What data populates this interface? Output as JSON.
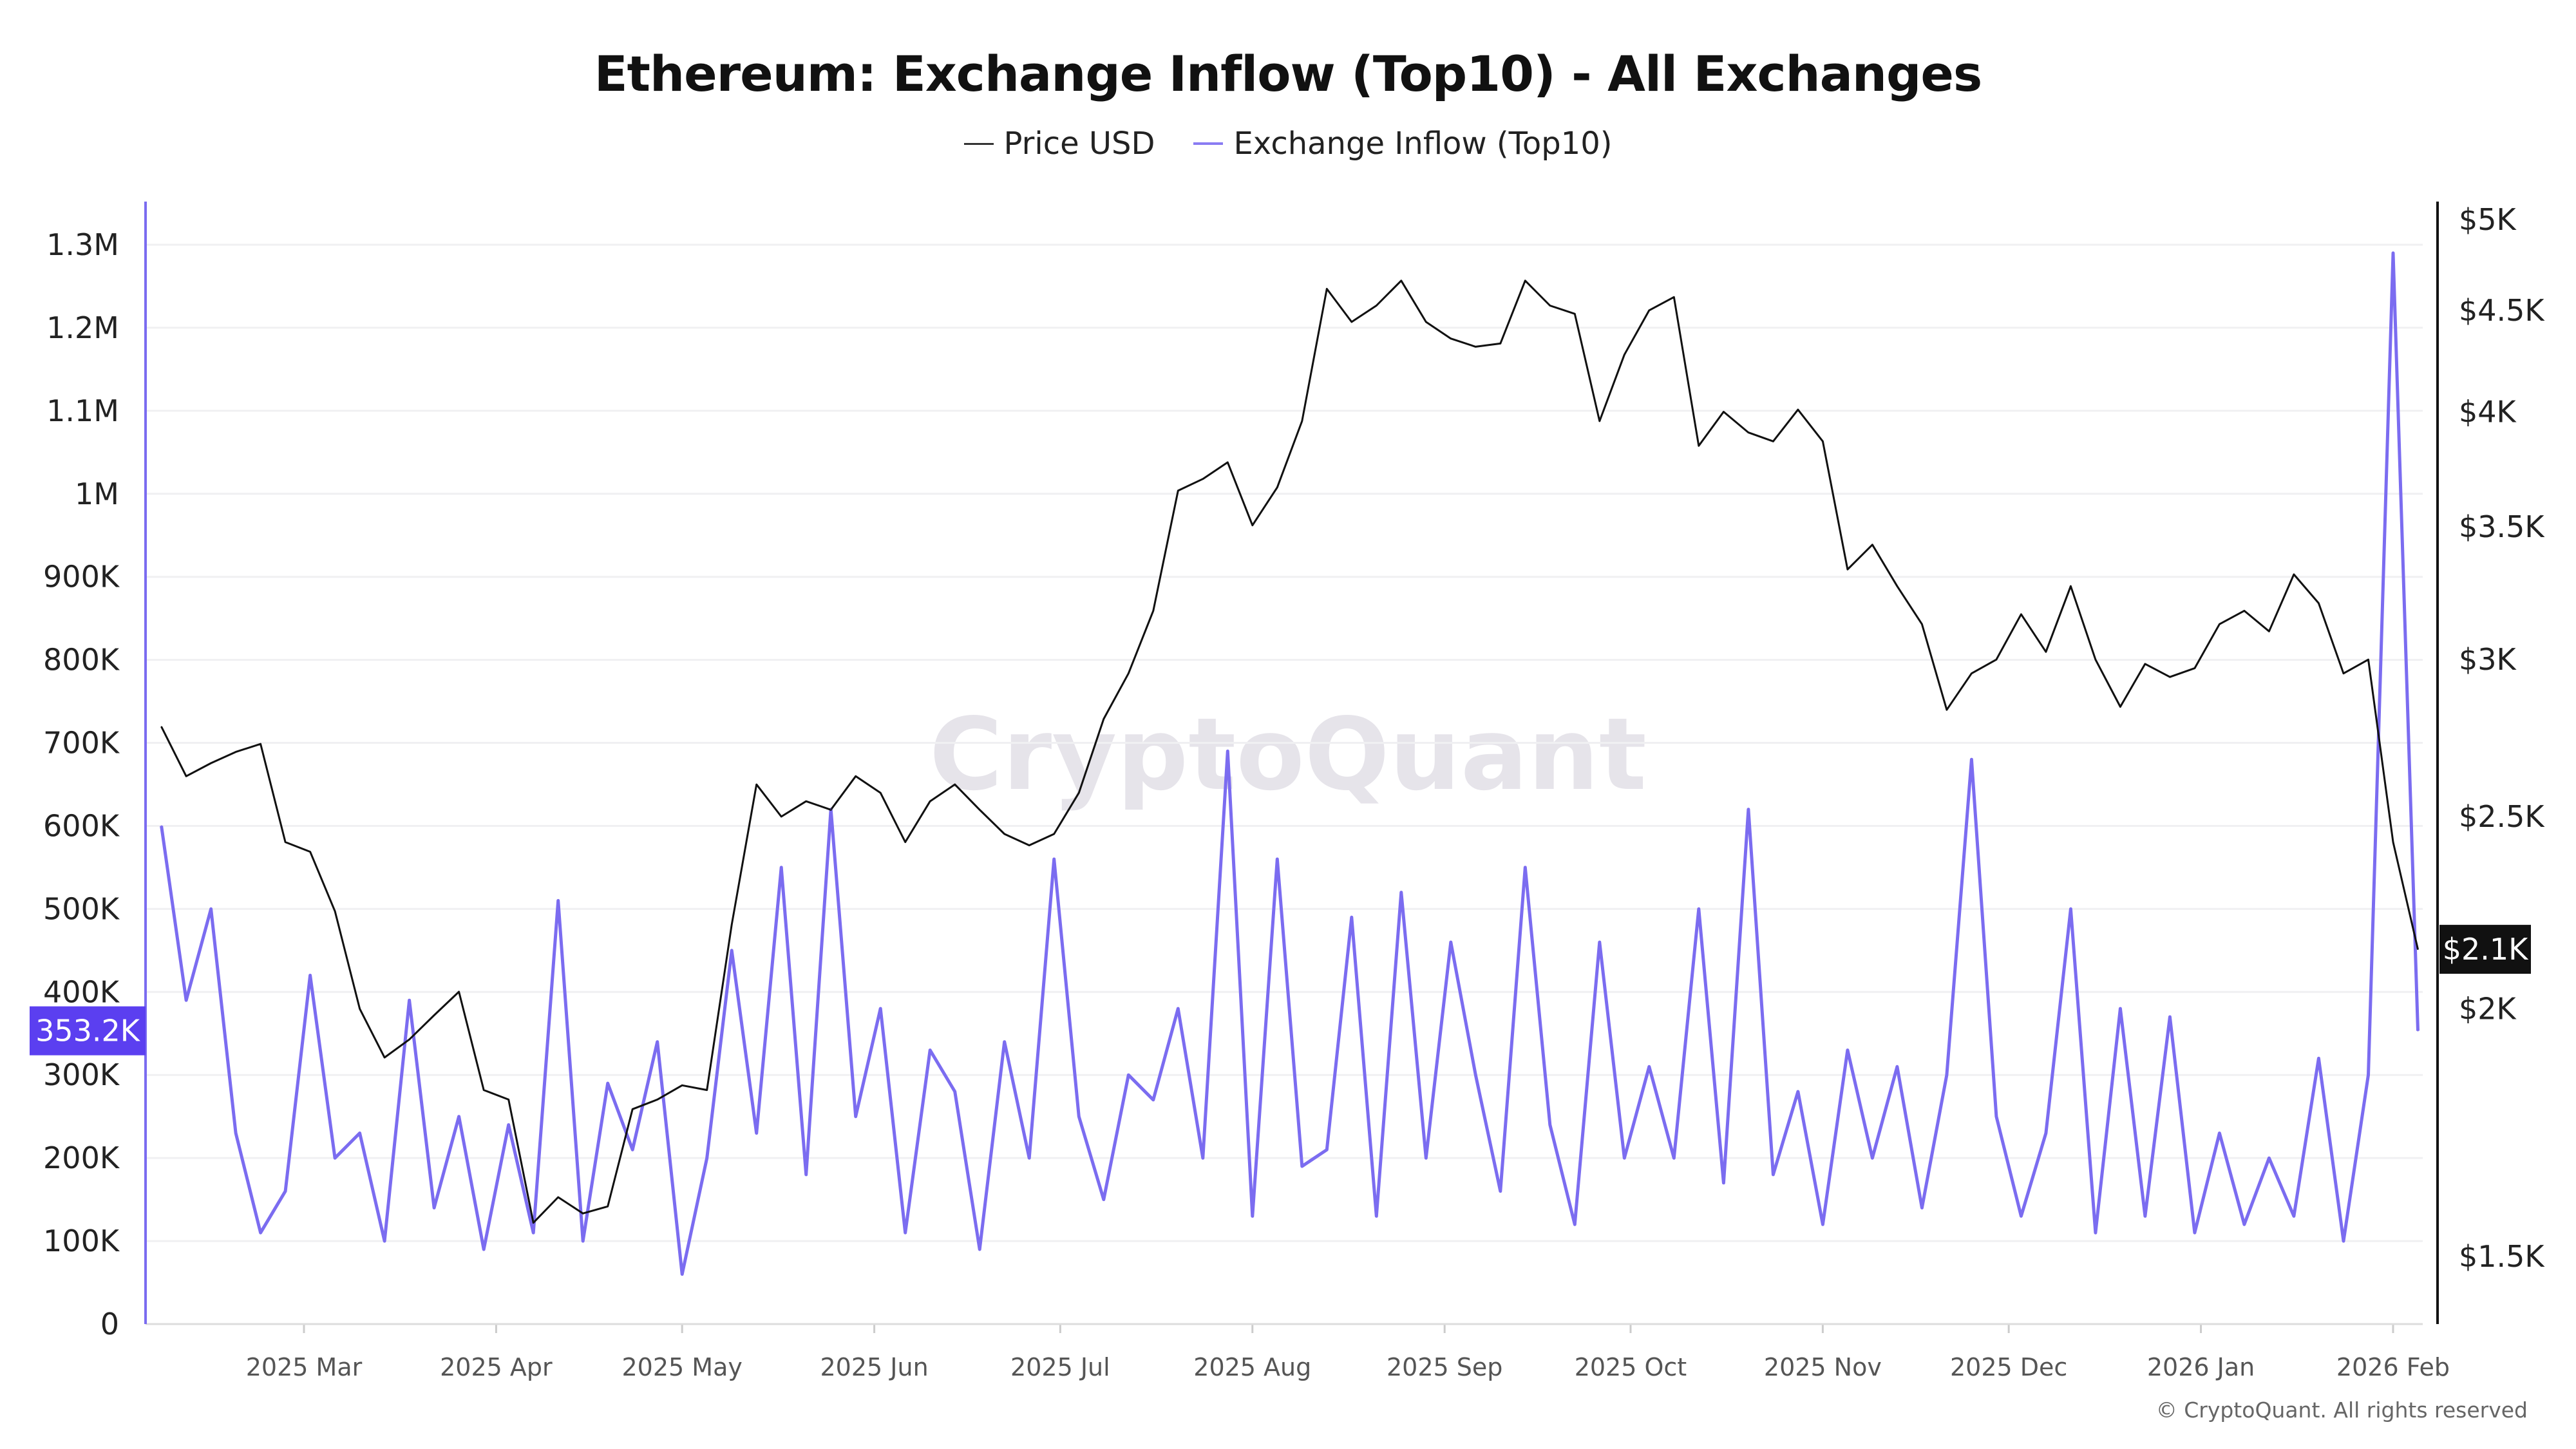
{
  "chart_data": {
    "type": "line",
    "title": "Ethereum: Exchange Inflow (Top10) - All Exchanges",
    "legend_position": "top-center",
    "grid": true,
    "watermark": "CryptoQuant",
    "copyright": "© CryptoQuant. All rights reserved",
    "x": [
      "2025-02-06",
      "2025-02-10",
      "2025-02-14",
      "2025-02-18",
      "2025-02-22",
      "2025-02-26",
      "2025-03-02",
      "2025-03-06",
      "2025-03-10",
      "2025-03-14",
      "2025-03-18",
      "2025-03-22",
      "2025-03-26",
      "2025-03-30",
      "2025-04-03",
      "2025-04-07",
      "2025-04-11",
      "2025-04-15",
      "2025-04-19",
      "2025-04-23",
      "2025-04-27",
      "2025-05-01",
      "2025-05-05",
      "2025-05-09",
      "2025-05-13",
      "2025-05-17",
      "2025-05-21",
      "2025-05-25",
      "2025-05-29",
      "2025-06-02",
      "2025-06-06",
      "2025-06-10",
      "2025-06-14",
      "2025-06-18",
      "2025-06-22",
      "2025-06-26",
      "2025-06-30",
      "2025-07-04",
      "2025-07-08",
      "2025-07-12",
      "2025-07-16",
      "2025-07-20",
      "2025-07-24",
      "2025-07-28",
      "2025-08-01",
      "2025-08-05",
      "2025-08-09",
      "2025-08-13",
      "2025-08-17",
      "2025-08-21",
      "2025-08-25",
      "2025-08-29",
      "2025-09-02",
      "2025-09-06",
      "2025-09-10",
      "2025-09-14",
      "2025-09-18",
      "2025-09-22",
      "2025-09-26",
      "2025-09-30",
      "2025-10-04",
      "2025-10-08",
      "2025-10-12",
      "2025-10-16",
      "2025-10-20",
      "2025-10-24",
      "2025-10-28",
      "2025-11-01",
      "2025-11-05",
      "2025-11-09",
      "2025-11-13",
      "2025-11-17",
      "2025-11-21",
      "2025-11-25",
      "2025-11-29",
      "2025-12-03",
      "2025-12-07",
      "2025-12-11",
      "2025-12-15",
      "2025-12-19",
      "2025-12-23",
      "2025-12-27",
      "2025-12-31",
      "2026-01-04",
      "2026-01-08",
      "2026-01-12",
      "2026-01-16",
      "2026-01-20",
      "2026-01-24",
      "2026-01-28",
      "2026-02-01",
      "2026-02-05"
    ],
    "series": [
      {
        "name": "Price USD",
        "axis": "right",
        "color": "#111111",
        "values": [
          2775,
          2620,
          2660,
          2695,
          2720,
          2427,
          2400,
          2240,
          2000,
          1890,
          1930,
          1985,
          2040,
          1820,
          1800,
          1560,
          1607,
          1577,
          1590,
          1780,
          1800,
          1830,
          1820,
          2205,
          2595,
          2500,
          2545,
          2520,
          2620,
          2570,
          2427,
          2545,
          2595,
          2520,
          2450,
          2418,
          2450,
          2570,
          2800,
          2952,
          3175,
          3650,
          3700,
          3772,
          3506,
          3664,
          3957,
          4614,
          4440,
          4525,
          4658,
          4440,
          4355,
          4314,
          4330,
          4658,
          4525,
          4482,
          3957,
          4274,
          4500,
          4570,
          3845,
          4000,
          3905,
          3865,
          4010,
          3865,
          3331,
          3428,
          3267,
          3126,
          2830,
          2952,
          3000,
          3162,
          3027,
          3267,
          3000,
          2840,
          2985,
          2940,
          2970,
          3126,
          3175,
          3100,
          3312,
          3203,
          2952,
          3000,
          2427,
          2143
        ]
      },
      {
        "name": "Exchange Inflow (Top10)",
        "axis": "left",
        "color": "#7b6cf0",
        "values": [
          600000,
          390000,
          500000,
          230000,
          110000,
          160000,
          420000,
          200000,
          230000,
          100000,
          390000,
          140000,
          250000,
          90000,
          240000,
          110000,
          510000,
          100000,
          290000,
          210000,
          340000,
          60000,
          200000,
          450000,
          230000,
          550000,
          180000,
          620000,
          250000,
          380000,
          110000,
          330000,
          280000,
          90000,
          340000,
          200000,
          560000,
          250000,
          150000,
          300000,
          270000,
          380000,
          200000,
          690000,
          130000,
          560000,
          190000,
          210000,
          490000,
          130000,
          520000,
          200000,
          460000,
          300000,
          160000,
          550000,
          240000,
          120000,
          460000,
          200000,
          310000,
          200000,
          500000,
          170000,
          620000,
          180000,
          280000,
          120000,
          330000,
          200000,
          310000,
          140000,
          300000,
          680000,
          250000,
          130000,
          230000,
          500000,
          110000,
          380000,
          130000,
          370000,
          110000,
          230000,
          120000,
          200000,
          130000,
          320000,
          100000,
          300000,
          1290000,
          353200
        ]
      }
    ],
    "left_axis": {
      "ylim": [
        0,
        1300000
      ],
      "scale": "linear",
      "ticks": [
        {
          "v": 0,
          "label": "0"
        },
        {
          "v": 100000,
          "label": "100K"
        },
        {
          "v": 200000,
          "label": "200K"
        },
        {
          "v": 300000,
          "label": "300K"
        },
        {
          "v": 400000,
          "label": "400K"
        },
        {
          "v": 500000,
          "label": "500K"
        },
        {
          "v": 600000,
          "label": "600K"
        },
        {
          "v": 700000,
          "label": "700K"
        },
        {
          "v": 800000,
          "label": "800K"
        },
        {
          "v": 900000,
          "label": "900K"
        },
        {
          "v": 1000000,
          "label": "1M"
        },
        {
          "v": 1100000,
          "label": "1.1M"
        },
        {
          "v": 1200000,
          "label": "1.2M"
        },
        {
          "v": 1300000,
          "label": "1.3M"
        }
      ],
      "current_label": "353.2K",
      "current_value": 353200,
      "badge_color": "#5b3ff0"
    },
    "right_axis": {
      "scale": "log",
      "ticks": [
        {
          "v": 5000,
          "label": "$5K"
        },
        {
          "v": 4500,
          "label": "$4.5K"
        },
        {
          "v": 4000,
          "label": "$4K"
        },
        {
          "v": 3500,
          "label": "$3.5K"
        },
        {
          "v": 3000,
          "label": "$3K"
        },
        {
          "v": 2500,
          "label": "$2.5K"
        },
        {
          "v": 2000,
          "label": "$2K"
        },
        {
          "v": 1500,
          "label": "$1.5K"
        }
      ],
      "current_label": "$2.1K",
      "current_value": 2143,
      "badge_color": "#111111"
    },
    "x_ticks": [
      {
        "date": "2025-03-01",
        "label": "2025 Mar"
      },
      {
        "date": "2025-04-01",
        "label": "2025 Apr"
      },
      {
        "date": "2025-05-01",
        "label": "2025 May"
      },
      {
        "date": "2025-06-01",
        "label": "2025 Jun"
      },
      {
        "date": "2025-07-01",
        "label": "2025 Jul"
      },
      {
        "date": "2025-08-01",
        "label": "2025 Aug"
      },
      {
        "date": "2025-09-01",
        "label": "2025 Sep"
      },
      {
        "date": "2025-10-01",
        "label": "2025 Oct"
      },
      {
        "date": "2025-11-01",
        "label": "2025 Nov"
      },
      {
        "date": "2025-12-01",
        "label": "2025 Dec"
      },
      {
        "date": "2026-01-01",
        "label": "2026 Jan"
      },
      {
        "date": "2026-02-01",
        "label": "2026 Feb"
      }
    ]
  }
}
